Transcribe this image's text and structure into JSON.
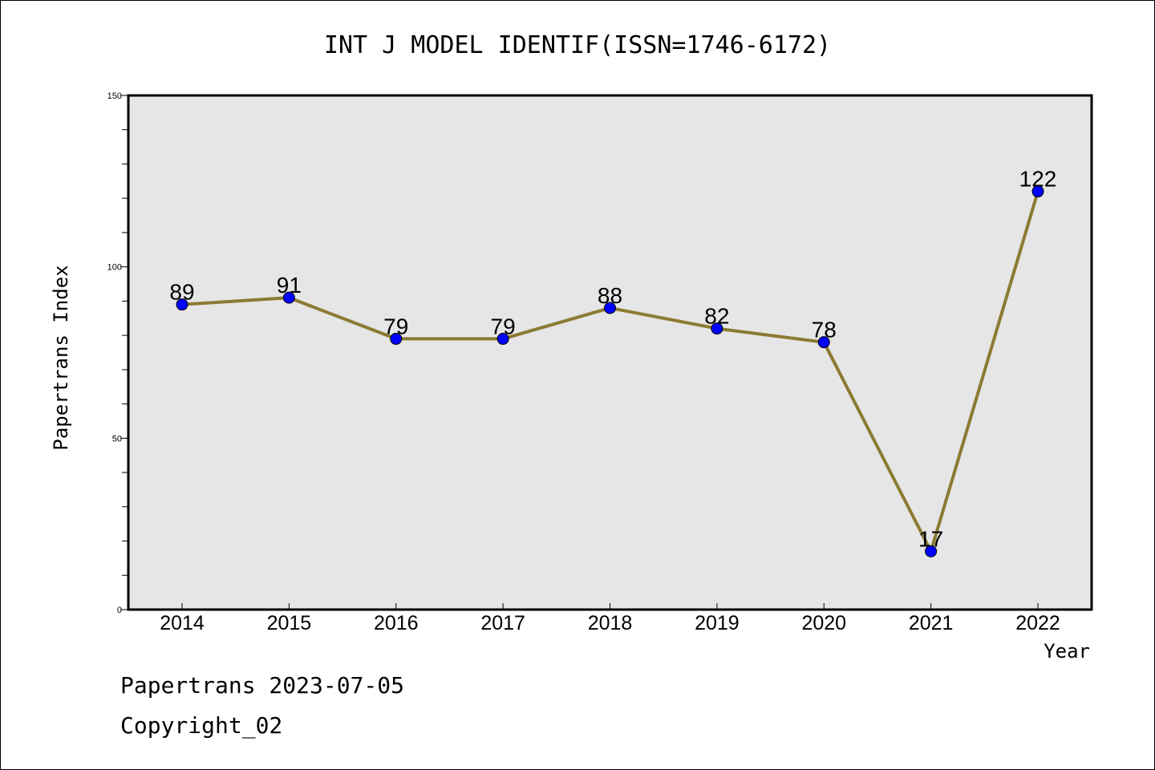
{
  "chart_data": {
    "type": "line",
    "title": "INT J MODEL IDENTIF(ISSN=1746-6172)",
    "xlabel": "Year",
    "ylabel": "Papertrans Index",
    "categories": [
      "2014",
      "2015",
      "2016",
      "2017",
      "2018",
      "2019",
      "2020",
      "2021",
      "2022"
    ],
    "series": [
      {
        "values": [
          89,
          91,
          79,
          79,
          88,
          82,
          78,
          17,
          122
        ]
      }
    ],
    "ylim": [
      0,
      150
    ],
    "yticks": [
      "0",
      "50",
      "100",
      "150"
    ],
    "grid": false,
    "line_color": "#8B7B33",
    "marker_color": "#0000FF",
    "plot_background": "#E6E6E6"
  },
  "footer": {
    "line1": "Papertrans 2023-07-05",
    "line2": "Copyright_02"
  }
}
